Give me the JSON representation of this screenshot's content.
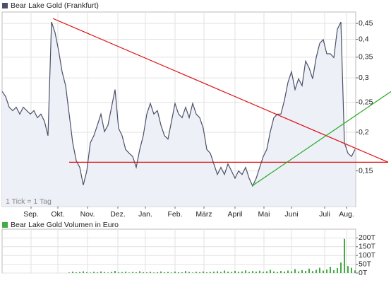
{
  "chart_data": [
    {
      "type": "line",
      "log_scale": true,
      "grid": true,
      "xlim": [
        0,
        100.2
      ],
      "ylim": [
        0.115,
        0.49
      ],
      "yticks": [
        {
          "value": 0.15,
          "label": "0,15"
        },
        {
          "value": 0.2,
          "label": "0,2"
        },
        {
          "value": 0.25,
          "label": "0,25"
        },
        {
          "value": 0.3,
          "label": "0,3"
        },
        {
          "value": 0.35,
          "label": "0,35"
        },
        {
          "value": 0.4,
          "label": "0,4"
        },
        {
          "value": 0.45,
          "label": "0,45"
        }
      ],
      "xticks": [
        {
          "value": 8.2,
          "label": "Sep."
        },
        {
          "value": 15.8,
          "label": "Okt."
        },
        {
          "value": 24.2,
          "label": "Nov."
        },
        {
          "value": 32.8,
          "label": "Dez."
        },
        {
          "value": 40.6,
          "label": "Jan."
        },
        {
          "value": 49,
          "label": "Feb."
        },
        {
          "value": 57.2,
          "label": "März"
        },
        {
          "value": 66,
          "label": "April"
        },
        {
          "value": 74.2,
          "label": "Mai"
        },
        {
          "value": 82,
          "label": "Juni"
        },
        {
          "value": 91.4,
          "label": "Juli"
        },
        {
          "value": 97.6,
          "label": "Aug."
        }
      ],
      "annotation": "1 Tick = 1 Tag",
      "area_color": "#eef0f8",
      "series": [
        {
          "name": "Bear Lake Gold (Frankfurt)",
          "color": "#4a5068",
          "values": [
            0.271,
            0.261,
            0.241,
            0.235,
            0.241,
            0.229,
            0.241,
            0.235,
            0.229,
            0.235,
            0.223,
            0.229,
            0.217,
            0.195,
            0.455,
            0.42,
            0.368,
            0.314,
            0.283,
            0.229,
            0.185,
            0.162,
            0.154,
            0.135,
            0.15,
            0.185,
            0.195,
            0.211,
            0.229,
            0.201,
            0.211,
            0.241,
            0.275,
            0.206,
            0.195,
            0.176,
            0.171,
            0.167,
            0.154,
            0.176,
            0.195,
            0.229,
            0.248,
            0.229,
            0.235,
            0.211,
            0.195,
            0.19,
            0.217,
            0.248,
            0.229,
            0.223,
            0.241,
            0.223,
            0.248,
            0.229,
            0.223,
            0.206,
            0.176,
            0.171,
            0.158,
            0.146,
            0.154,
            0.146,
            0.158,
            0.15,
            0.142,
            0.15,
            0.146,
            0.154,
            0.142,
            0.134,
            0.142,
            0.154,
            0.167,
            0.176,
            0.201,
            0.223,
            0.229,
            0.229,
            0.254,
            0.29,
            0.314,
            0.275,
            0.298,
            0.283,
            0.34,
            0.323,
            0.298,
            0.349,
            0.388,
            0.399,
            0.359,
            0.359,
            0.349,
            0.431,
            0.455,
            0.185,
            0.171,
            0.167,
            0.176
          ]
        }
      ],
      "trend_lines": [
        {
          "color": "#dd1111",
          "points": [
            [
              14.4,
              0.467
            ],
            [
              109.4,
              0.16
            ]
          ]
        },
        {
          "color": "#dd1111",
          "points": [
            [
              19,
              0.16
            ],
            [
              109.4,
              0.16
            ]
          ]
        },
        {
          "color": "#22aa22",
          "points": [
            [
              70.8,
              0.134
            ],
            [
              110.2,
              0.271
            ]
          ]
        }
      ]
    },
    {
      "type": "bar",
      "grid": true,
      "ylim": [
        0,
        250
      ],
      "yticks": [
        {
          "value": 0,
          "label": "0T"
        },
        {
          "value": 50,
          "label": "50T"
        },
        {
          "value": 100,
          "label": "100T"
        },
        {
          "value": 150,
          "label": "150T"
        },
        {
          "value": 200,
          "label": "200T"
        }
      ],
      "series": [
        {
          "name": "Bear Lake Gold Volumen in Euro",
          "color": "#44aa44",
          "values": [
            0,
            0,
            0,
            0,
            0,
            0,
            0,
            0,
            0,
            0,
            0,
            0,
            0,
            0,
            0,
            0,
            0,
            0,
            0,
            3,
            8,
            4,
            6,
            10,
            5,
            3,
            7,
            4,
            9,
            5,
            3,
            6,
            12,
            4,
            5,
            8,
            3,
            6,
            4,
            10,
            5,
            4,
            7,
            3,
            5,
            9,
            4,
            6,
            3,
            8,
            5,
            4,
            11,
            6,
            3,
            7,
            5,
            9,
            4,
            6,
            8,
            10,
            6,
            14,
            8,
            5,
            12,
            7,
            9,
            15,
            6,
            11,
            8,
            13,
            7,
            10,
            18,
            9,
            6,
            12,
            8,
            14,
            10,
            22,
            9,
            16,
            12,
            25,
            11,
            18,
            30,
            14,
            20,
            35,
            16,
            28,
            60,
            195,
            40,
            30,
            15
          ]
        }
      ]
    }
  ]
}
